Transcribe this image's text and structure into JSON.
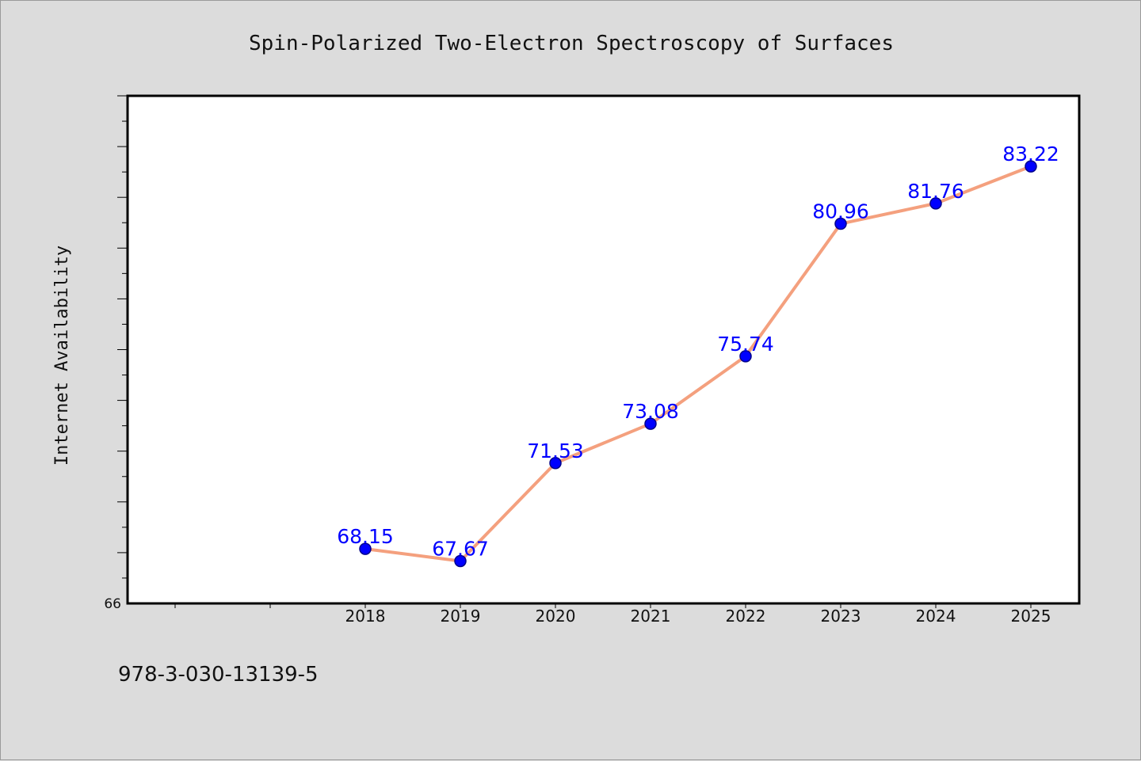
{
  "chart_data": {
    "type": "line",
    "title": "Spin-Polarized Two-Electron Spectroscopy of Surfaces",
    "ylabel": "Internet Availability",
    "xlabel": "",
    "categories": [
      "2018",
      "2019",
      "2020",
      "2021",
      "2022",
      "2023",
      "2024",
      "2025"
    ],
    "series": [
      {
        "values": [
          68.15,
          67.67,
          71.53,
          73.08,
          75.74,
          80.96,
          81.76,
          83.22
        ]
      }
    ],
    "ylim": [
      66,
      86
    ],
    "yticks_labeled": [
      "66"
    ],
    "grid": false,
    "legend": "none",
    "colors": {
      "line": "#f4a07e",
      "marker": "#0000ff",
      "marker_edge": "#00008b",
      "data_label": "#0000ff"
    }
  },
  "footer": {
    "code": "978-3-030-13139-5"
  }
}
